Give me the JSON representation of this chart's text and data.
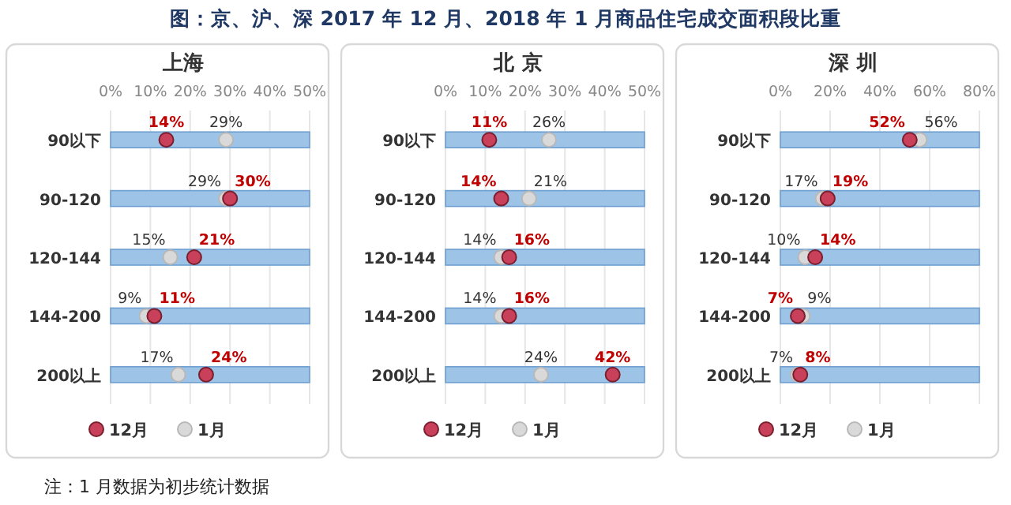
{
  "chart_data": [
    {
      "type": "other",
      "title": "图：京、沪、深 2017 年 12 月、2018 年 1 月商品住宅成交面积段比重",
      "annotations": [
        "注：1 月数据为初步统计数据"
      ]
    },
    {
      "type": "scatter",
      "title": "上海",
      "orientation": "horizontal",
      "categories": [
        "90以下",
        "90-120",
        "120-144",
        "144-200",
        "200以上"
      ],
      "xlim": [
        0,
        50
      ],
      "xticks": [
        {
          "value": 0,
          "label": "0%"
        },
        {
          "value": 10,
          "label": "10%"
        },
        {
          "value": 20,
          "label": "20%"
        },
        {
          "value": 30,
          "label": "30%"
        },
        {
          "value": 40,
          "label": "40%"
        },
        {
          "value": 50,
          "label": "50%"
        }
      ],
      "grid": "x",
      "legend": "bottom",
      "marker": "circle",
      "series": [
        {
          "type": "bar",
          "color": "#9dc3e6",
          "values": [
            50,
            50,
            50,
            50,
            50
          ]
        },
        {
          "name": "12月",
          "color": "#c8405a",
          "values": [
            14,
            30,
            21,
            11,
            24
          ],
          "value_labels": [
            "14%",
            "30%",
            "21%",
            "11%",
            "24%"
          ]
        },
        {
          "name": "1月",
          "color": "#d9d9d9",
          "values": [
            29,
            29,
            15,
            9,
            17
          ],
          "value_labels": [
            "29%",
            "29%",
            "15%",
            "9%",
            "17%"
          ]
        }
      ]
    },
    {
      "type": "scatter",
      "title": "北 京",
      "orientation": "horizontal",
      "categories": [
        "90以下",
        "90-120",
        "120-144",
        "144-200",
        "200以上"
      ],
      "xlim": [
        0,
        50
      ],
      "xticks": [
        {
          "value": 0,
          "label": "0%"
        },
        {
          "value": 10,
          "label": "10%"
        },
        {
          "value": 20,
          "label": "20%"
        },
        {
          "value": 30,
          "label": "30%"
        },
        {
          "value": 40,
          "label": "40%"
        },
        {
          "value": 50,
          "label": "50%"
        }
      ],
      "grid": "x",
      "legend": "bottom",
      "marker": "circle",
      "series": [
        {
          "type": "bar",
          "color": "#9dc3e6",
          "values": [
            50,
            50,
            50,
            50,
            50
          ]
        },
        {
          "name": "12月",
          "color": "#c8405a",
          "values": [
            11,
            14,
            16,
            16,
            42
          ],
          "value_labels": [
            "11%",
            "14%",
            "16%",
            "16%",
            "42%"
          ]
        },
        {
          "name": "1月",
          "color": "#d9d9d9",
          "values": [
            26,
            21,
            14,
            14,
            24
          ],
          "value_labels": [
            "26%",
            "21%",
            "14%",
            "14%",
            "24%"
          ]
        }
      ]
    },
    {
      "type": "scatter",
      "title": "深 圳",
      "orientation": "horizontal",
      "categories": [
        "90以下",
        "90-120",
        "120-144",
        "144-200",
        "200以上"
      ],
      "xlim": [
        0,
        80
      ],
      "xticks": [
        {
          "value": 0,
          "label": "0%"
        },
        {
          "value": 20,
          "label": "20%"
        },
        {
          "value": 40,
          "label": "40%"
        },
        {
          "value": 60,
          "label": "60%"
        },
        {
          "value": 80,
          "label": "80%"
        }
      ],
      "grid": "x",
      "legend": "bottom",
      "marker": "circle",
      "series": [
        {
          "type": "bar",
          "color": "#9dc3e6",
          "values": [
            80,
            80,
            80,
            80,
            80
          ]
        },
        {
          "name": "12月",
          "color": "#c8405a",
          "values": [
            52,
            19,
            14,
            7,
            8
          ],
          "value_labels": [
            "52%",
            "19%",
            "14%",
            "7%",
            "8%"
          ]
        },
        {
          "name": "1月",
          "color": "#d9d9d9",
          "values": [
            56,
            17,
            10,
            9,
            7
          ],
          "value_labels": [
            "56%",
            "17%",
            "10%",
            "9%",
            "7%"
          ]
        }
      ]
    }
  ]
}
